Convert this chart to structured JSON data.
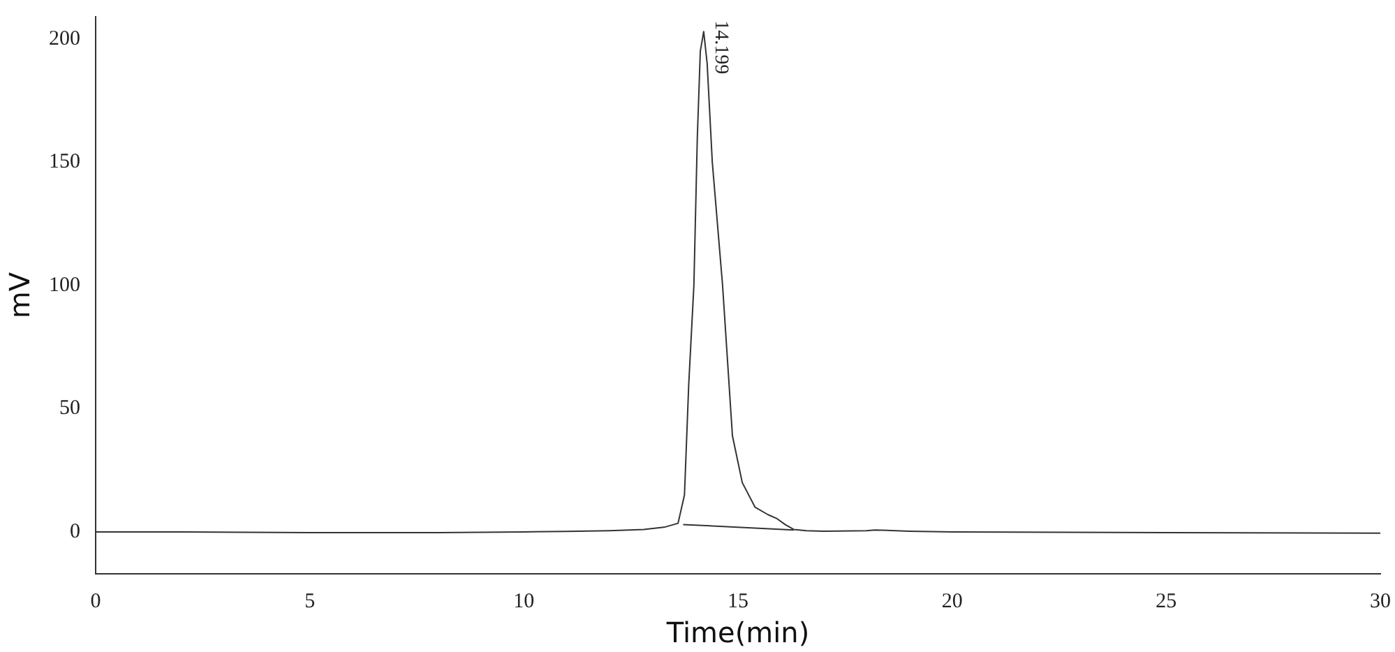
{
  "chart_data": {
    "type": "line",
    "xlabel": "Time(min)",
    "ylabel": "mV",
    "series": [
      {
        "color": "#333333",
        "x": [
          0,
          2,
          5,
          8,
          10,
          11,
          12,
          12.8,
          13.3,
          13.6,
          13.75,
          13.85,
          13.97,
          14.05,
          14.12,
          14.199,
          14.28,
          14.4,
          14.64,
          14.87,
          15.1,
          15.4,
          15.7,
          15.9,
          16.1,
          16.3,
          16.6,
          17,
          18,
          18.2,
          19,
          20,
          25,
          30
        ],
        "values": [
          0,
          0,
          -0.3,
          -0.3,
          0,
          0.2,
          0.5,
          1,
          2,
          3.5,
          15,
          60,
          100,
          160,
          195,
          203,
          190,
          150,
          100,
          39,
          20,
          10,
          7,
          5.5,
          3,
          1,
          0.5,
          0.3,
          0.5,
          0.8,
          0.3,
          0,
          -0.3,
          -0.5
        ]
      },
      {
        "color": "#333333",
        "x": [
          13.72,
          16.3
        ],
        "values": [
          3,
          0.8
        ]
      }
    ],
    "annotations": [
      {
        "text": "14.199",
        "x": 14.199,
        "y": 203
      }
    ],
    "xlim": [
      0,
      30
    ],
    "xticks": [
      0,
      5,
      10,
      15,
      20,
      25,
      30
    ],
    "ylim": [
      -17,
      209
    ],
    "yticks": [
      0,
      50,
      100,
      150,
      200
    ],
    "grid": false,
    "legend": false,
    "marker": "none",
    "line_style": "solid"
  }
}
